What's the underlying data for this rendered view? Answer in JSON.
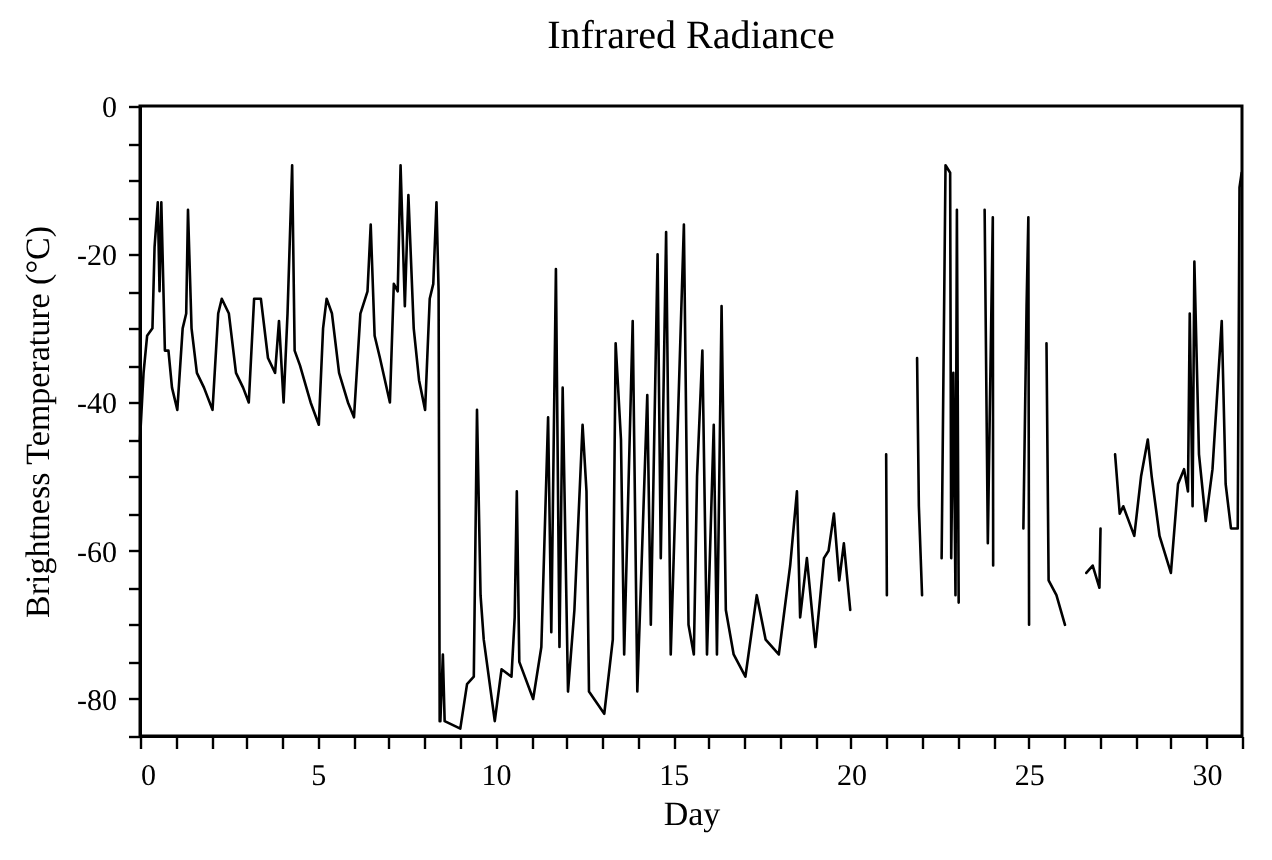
{
  "chart_data": {
    "type": "line",
    "title": "Infrared Radiance",
    "xlabel": "Day",
    "ylabel": "Brightness Temperature (°C)",
    "xlim": [
      0,
      31
    ],
    "ylim": [
      -85,
      0
    ],
    "xticks": [
      0,
      {
        "value": 1,
        "label": null
      },
      {
        "value": 2,
        "label": null
      },
      {
        "value": 3,
        "label": null
      },
      {
        "value": 4,
        "label": null
      },
      5,
      {
        "value": 6,
        "label": null
      },
      {
        "value": 7,
        "label": null
      },
      {
        "value": 8,
        "label": null
      },
      {
        "value": 9,
        "label": null
      },
      10,
      {
        "value": 11,
        "label": null
      },
      {
        "value": 12,
        "label": null
      },
      {
        "value": 13,
        "label": null
      },
      {
        "value": 14,
        "label": null
      },
      15,
      {
        "value": 16,
        "label": null
      },
      {
        "value": 17,
        "label": null
      },
      {
        "value": 18,
        "label": null
      },
      {
        "value": 19,
        "label": null
      },
      20,
      {
        "value": 21,
        "label": null
      },
      {
        "value": 22,
        "label": null
      },
      {
        "value": 23,
        "label": null
      },
      {
        "value": 24,
        "label": null
      },
      25,
      {
        "value": 26,
        "label": null
      },
      {
        "value": 27,
        "label": null
      },
      {
        "value": 28,
        "label": null
      },
      {
        "value": 29,
        "label": null
      },
      30,
      {
        "value": 31,
        "label": null
      }
    ],
    "yticks": [
      {
        "value": -85,
        "label": null
      },
      -80,
      {
        "value": -75,
        "label": null
      },
      {
        "value": -70,
        "label": null
      },
      {
        "value": -65,
        "label": null
      },
      -60,
      {
        "value": -55,
        "label": null
      },
      {
        "value": -50,
        "label": null
      },
      {
        "value": -45,
        "label": null
      },
      -40,
      {
        "value": -35,
        "label": null
      },
      {
        "value": -30,
        "label": null
      },
      {
        "value": -25,
        "label": null
      },
      -20,
      {
        "value": -15,
        "label": null
      },
      {
        "value": -10,
        "label": null
      },
      {
        "value": -5,
        "label": null
      },
      0
    ],
    "x": [
      0,
      0.1,
      0.2,
      0.35,
      0.41,
      0.5,
      0.55,
      0.6,
      0.7,
      0.8,
      0.9,
      1.05,
      1.2,
      1.3,
      1.35,
      1.45,
      1.6,
      1.8,
      2.04,
      2.2,
      2.3,
      2.5,
      2.7,
      2.9,
      3.06,
      3.21,
      3.4,
      3.6,
      3.8,
      3.91,
      4.04,
      4.15,
      4.28,
      4.35,
      4.5,
      4.8,
      5.03,
      5.15,
      5.25,
      5.4,
      5.6,
      5.85,
      6.02,
      6.2,
      6.4,
      6.49,
      6.6,
      6.75,
      7.03,
      7.14,
      7.25,
      7.33,
      7.45,
      7.55,
      7.7,
      7.85,
      8.02,
      8.15,
      8.25,
      8.34,
      8.4,
      8.43,
      8.45,
      8.52,
      8.57,
      9.01,
      9.2,
      9.39,
      9.48,
      9.58,
      9.67,
      9.98,
      10.17,
      10.45,
      10.54,
      10.6,
      10.67,
      11.06,
      11.29,
      11.48,
      11.57,
      11.7,
      11.8,
      11.89,
      12.04,
      12.22,
      12.45,
      12.56,
      12.63,
      13.06,
      13.3,
      13.38,
      13.53,
      13.62,
      13.86,
      13.99,
      14.27,
      14.37,
      14.56,
      14.65,
      14.8,
      14.93,
      15.3,
      15.43,
      15.58,
      15.67,
      15.82,
      15.95,
      16.14,
      16.23,
      16.36,
      16.48,
      16.7,
      17.03,
      17.35,
      17.6,
      17.97,
      18.29,
      18.48,
      18.57,
      18.76,
      19.0,
      19.24,
      19.37,
      19.52,
      19.67,
      19.8,
      19.98,
      20.5,
      20.99,
      21.01,
      21.4,
      21.86,
      21.91,
      22.0,
      22.3,
      22.55,
      22.66,
      22.79,
      22.82,
      22.88,
      22.94,
      22.98,
      23.03,
      23.4,
      23.76,
      23.85,
      23.9,
      23.99,
      24.0,
      24.4,
      24.85,
      24.94,
      24.99,
      25.01,
      25.3,
      25.5,
      25.56,
      25.78,
      26.02,
      26.3,
      26.62,
      26.8,
      26.99,
      27.02,
      27.2,
      27.43,
      27.56,
      27.66,
      27.97,
      28.16,
      28.35,
      28.46,
      28.68,
      29.0,
      29.2,
      29.37,
      29.48,
      29.53,
      29.61,
      29.66,
      29.79,
      29.98,
      30.17,
      30.3,
      30.43,
      30.54,
      30.69,
      30.88,
      30.93,
      30.99
    ],
    "series": [
      {
        "color": "#000000",
        "values": [
          -45,
          -36,
          -31,
          -30,
          -19,
          -13,
          -25,
          -13,
          -33,
          -33,
          -38,
          -41,
          -30,
          -28,
          -14,
          -30,
          -36,
          -38,
          -41,
          -28,
          -26,
          -28,
          -36,
          -38,
          -40,
          -26,
          -26,
          -34,
          -36,
          -29,
          -40,
          -28,
          -8,
          -33,
          -35,
          -40,
          -43,
          -30,
          -26,
          -28,
          -36,
          -40,
          -42,
          -28,
          -25,
          -16,
          -31,
          -34,
          -40,
          -24,
          -25,
          -8,
          -27,
          -12,
          -30,
          -37,
          -41,
          -26,
          -24,
          -13,
          -25,
          -83,
          -83,
          -74,
          -83,
          -84,
          -78,
          -77,
          -41,
          -66,
          -72,
          -83,
          -76,
          -77,
          -69,
          -52,
          -75,
          -80,
          -73,
          -42,
          -71,
          -22,
          -73,
          -38,
          -79,
          -68,
          -43,
          -52,
          -79,
          -82,
          -72,
          -32,
          -45,
          -74,
          -29,
          -79,
          -39,
          -70,
          -20,
          -61,
          -17,
          -74,
          -16,
          -70,
          -74,
          -50,
          -33,
          -74,
          -43,
          -74,
          -27,
          -68,
          -74,
          -77,
          -66,
          -72,
          -74,
          -62,
          -52,
          -69,
          -61,
          -73,
          -61,
          -60,
          -55,
          -64,
          -59,
          -68,
          null,
          -47,
          -66,
          null,
          -34,
          -54,
          -66,
          null,
          -61,
          -8,
          -9,
          -61,
          -36,
          -66,
          -14,
          -67,
          null,
          -14,
          -59,
          -43,
          -15,
          -62,
          null,
          -57,
          -27,
          -15,
          -70,
          null,
          -32,
          -64,
          -66,
          -70,
          null,
          -63,
          -62,
          -65,
          -57,
          null,
          -47,
          -55,
          -54,
          -58,
          -50,
          -45,
          -50,
          -58,
          -63,
          -51,
          -49,
          -52,
          -28,
          -54,
          -21,
          -47,
          -56,
          -49,
          -39,
          -29,
          -51,
          -57,
          -57,
          -11,
          -9
        ]
      }
    ]
  }
}
